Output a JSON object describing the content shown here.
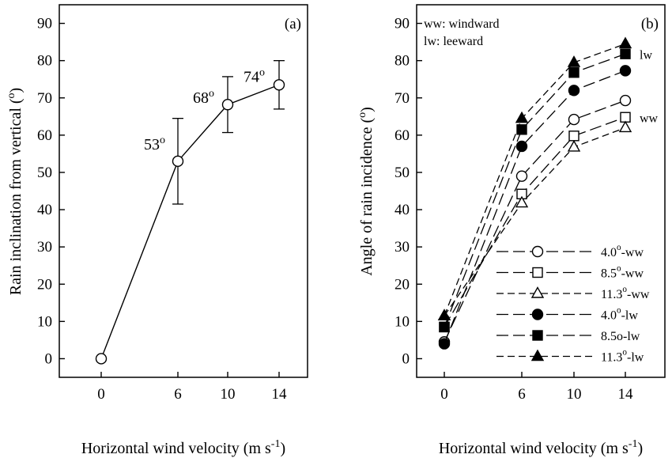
{
  "chart_data": [
    {
      "type": "line",
      "panel_label": "(a)",
      "xlabel": "Horizontal wind velocity (m s",
      "xlabel_sup": "-1",
      "xlabel_end": ")",
      "ylabel": "Rain inclination from vertical (",
      "ylabel_sup": "o",
      "ylabel_end": ")",
      "x_ticks": [
        "0",
        "6",
        "10",
        "14"
      ],
      "y_ticks": [
        "0",
        "10",
        "20",
        "30",
        "40",
        "50",
        "60",
        "70",
        "80",
        "90"
      ],
      "ylim": [
        -5,
        95
      ],
      "grid": false,
      "series": [
        {
          "x": [
            0,
            6,
            10,
            14
          ],
          "values": [
            0,
            53,
            68.2,
            73.5
          ],
          "error": [
            null,
            11.5,
            7.5,
            6.5
          ],
          "marker": "open-circle",
          "line": "solid"
        }
      ],
      "annotations": [
        {
          "x": 6,
          "y": 53,
          "base": "53",
          "sup": "o"
        },
        {
          "x": 10,
          "y": 68.2,
          "base": "68",
          "sup": "o"
        },
        {
          "x": 14,
          "y": 73.5,
          "base": "74",
          "sup": "o"
        }
      ]
    },
    {
      "type": "line",
      "panel_label": "(b)",
      "xlabel": "Horizontal wind velocity (m s",
      "xlabel_sup": "-1",
      "xlabel_end": ")",
      "ylabel": "Angle of rain incidence (",
      "ylabel_sup": "o",
      "ylabel_end": ")",
      "x_ticks": [
        "0",
        "6",
        "10",
        "14"
      ],
      "y_ticks": [
        "0",
        "10",
        "20",
        "30",
        "40",
        "50",
        "60",
        "70",
        "80",
        "90"
      ],
      "ylim": [
        -5,
        95
      ],
      "grid": false,
      "legend_position": "bottom-right",
      "notes": [
        "ww: windward",
        "lw: leeward"
      ],
      "end_labels": [
        {
          "text": "lw",
          "x": 14,
          "y": 81.5
        },
        {
          "text": "ww",
          "x": 14,
          "y": 64.5
        }
      ],
      "series": [
        {
          "name_base": "4.0",
          "name_sup": "o",
          "name_end": "-ww",
          "marker": "open-circle",
          "line": "long-dash",
          "x": [
            0,
            6,
            10,
            14
          ],
          "values": [
            4.5,
            49,
            64.2,
            69.3
          ]
        },
        {
          "name_base": "8.5",
          "name_sup": "o",
          "name_end": "-ww",
          "marker": "open-square",
          "line": "long-dash",
          "x": [
            0,
            6,
            10,
            14
          ],
          "values": [
            8.5,
            44.2,
            59.8,
            64.8
          ]
        },
        {
          "name_base": "11.3",
          "name_sup": "o",
          "name_end": "-ww",
          "marker": "open-triangle",
          "line": "short-dash",
          "x": [
            0,
            6,
            10,
            14
          ],
          "values": [
            11.5,
            41.8,
            56.8,
            62
          ]
        },
        {
          "name_base": "4.0",
          "name_sup": "o",
          "name_end": "-lw",
          "marker": "filled-circle",
          "line": "long-dash",
          "x": [
            0,
            6,
            10,
            14
          ],
          "values": [
            4,
            57,
            72,
            77.3
          ]
        },
        {
          "name_base": "8.5o-lw",
          "name_sup": "",
          "name_end": "",
          "marker": "filled-square",
          "line": "long-dash",
          "x": [
            0,
            6,
            10,
            14
          ],
          "values": [
            8.5,
            61.5,
            76.8,
            81.8
          ]
        },
        {
          "name_base": "11.3",
          "name_sup": "o",
          "name_end": "-lw",
          "marker": "filled-triangle",
          "line": "short-dash",
          "x": [
            0,
            6,
            10,
            14
          ],
          "values": [
            11.5,
            64.5,
            79.5,
            84.5
          ]
        }
      ]
    }
  ]
}
